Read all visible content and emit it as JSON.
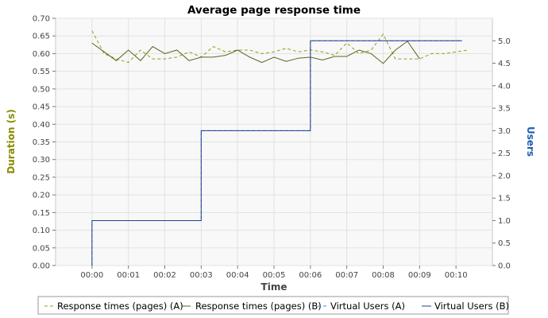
{
  "chart_data": {
    "type": "line",
    "title": "Average page response time",
    "xlabel": "Time",
    "ylabel_left": "Duration (s)",
    "ylabel_right": "Users",
    "x_ticks": [
      "00:00",
      "00:01",
      "00:02",
      "00:03",
      "00:04",
      "00:05",
      "00:06",
      "00:07",
      "00:08",
      "00:09",
      "00:10"
    ],
    "y_left_ticks": [
      "0.00",
      "0.05",
      "0.10",
      "0.15",
      "0.20",
      "0.25",
      "0.30",
      "0.35",
      "0.40",
      "0.45",
      "0.50",
      "0.55",
      "0.60",
      "0.65",
      "0.70"
    ],
    "y_right_ticks": [
      "0.0",
      "0.5",
      "1.0",
      "1.5",
      "2.0",
      "2.5",
      "3.0",
      "3.5",
      "4.0",
      "4.5",
      "5.0"
    ],
    "ylim_left": [
      0,
      0.7
    ],
    "ylim_right": [
      0,
      5.5
    ],
    "xlim_seconds": [
      -60,
      660
    ],
    "grid": true,
    "legend_position": "bottom",
    "colors": {
      "duration_axis": "#8b8b00",
      "users_axis": "#1f5fb0",
      "series_a": "#9a9a1c",
      "series_b": "#56671c",
      "users_a": "#3d8fd8",
      "users_b": "#1f3f8f",
      "plot_background": "#f8f8f8",
      "grid": "#e2e2e2"
    },
    "series": [
      {
        "name": "Response times (pages) (A)",
        "axis": "left",
        "style": "dashed",
        "x_seconds": [
          0,
          20,
          40,
          60,
          80,
          100,
          120,
          140,
          160,
          180,
          200,
          220,
          240,
          260,
          280,
          300,
          320,
          340,
          360,
          380,
          400,
          420,
          440,
          460,
          480,
          500,
          520,
          540,
          560,
          580,
          600,
          620
        ],
        "values": [
          0.665,
          0.6,
          0.585,
          0.575,
          0.61,
          0.585,
          0.585,
          0.59,
          0.605,
          0.59,
          0.62,
          0.605,
          0.61,
          0.61,
          0.6,
          0.605,
          0.615,
          0.605,
          0.61,
          0.605,
          0.595,
          0.63,
          0.6,
          0.61,
          0.655,
          0.585,
          0.585,
          0.585,
          0.6,
          0.6,
          0.605,
          0.61
        ]
      },
      {
        "name": "Response times (pages) (B)",
        "axis": "left",
        "style": "solid",
        "x_seconds": [
          0,
          20,
          40,
          60,
          80,
          100,
          120,
          140,
          160,
          180,
          200,
          220,
          240,
          260,
          280,
          300,
          320,
          340,
          360,
          380,
          400,
          420,
          440,
          460,
          480,
          500,
          520,
          540,
          560,
          580,
          600,
          620
        ],
        "values": [
          0.63,
          0.605,
          0.58,
          0.61,
          0.58,
          0.62,
          0.6,
          0.61,
          0.58,
          0.59,
          0.59,
          0.595,
          0.61,
          0.59,
          0.575,
          0.59,
          0.578,
          0.587,
          0.59,
          0.582,
          0.592,
          0.592,
          0.61,
          0.6,
          0.572,
          0.61,
          0.635,
          0.585,
          null,
          null,
          null,
          null
        ]
      },
      {
        "name": "Virtual Users (A)",
        "axis": "right",
        "style": "dashed",
        "x_seconds": [
          0,
          0,
          180,
          180,
          360,
          360,
          610
        ],
        "values": [
          0,
          1,
          1,
          3,
          3,
          5,
          5
        ]
      },
      {
        "name": "Virtual Users (B)",
        "axis": "right",
        "style": "solid",
        "x_seconds": [
          0,
          0,
          180,
          180,
          360,
          360,
          610
        ],
        "values": [
          0,
          1,
          1,
          3,
          3,
          5,
          5
        ]
      }
    ]
  }
}
